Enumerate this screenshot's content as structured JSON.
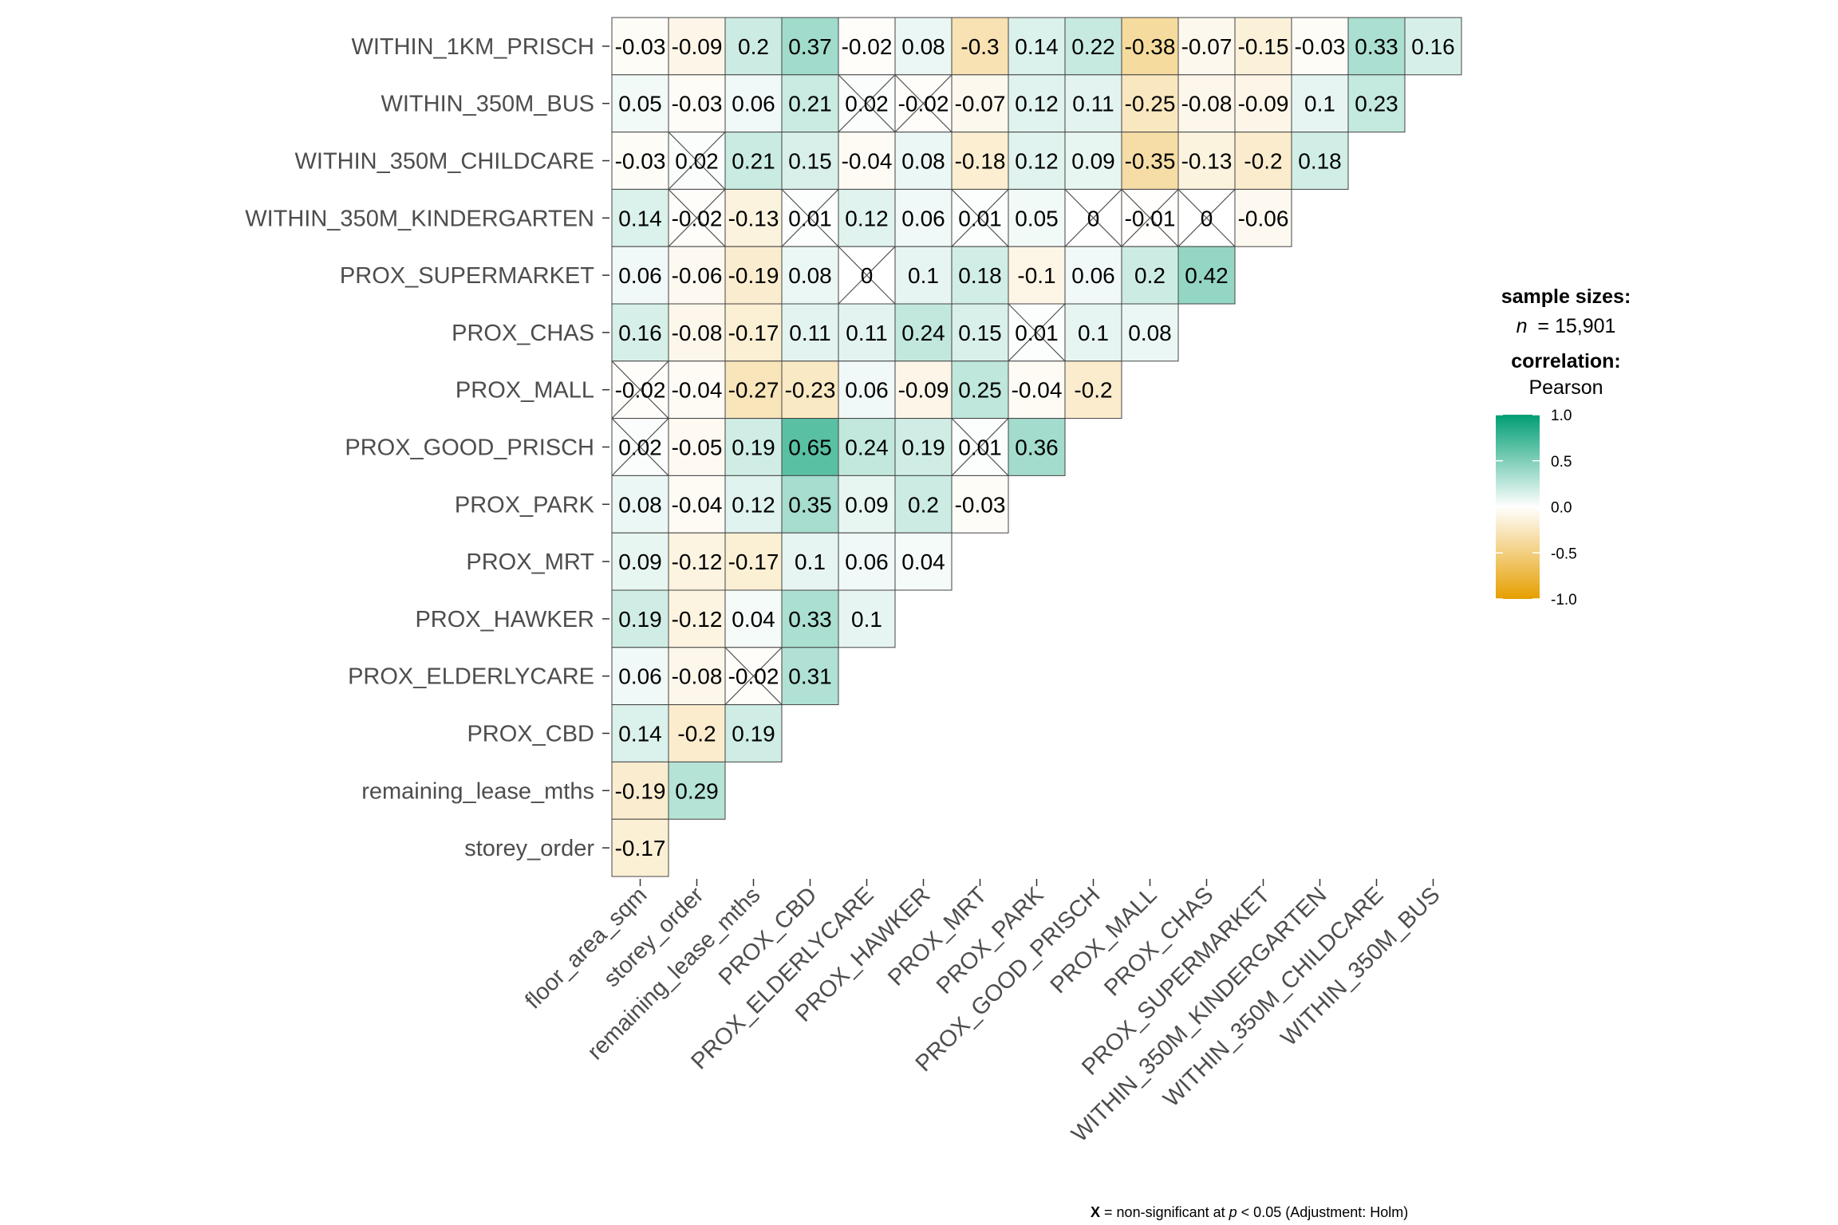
{
  "chart_data": {
    "type": "heatmap",
    "variables": [
      "floor_area_sqm",
      "storey_order",
      "remaining_lease_mths",
      "PROX_CBD",
      "PROX_ELDERLYCARE",
      "PROX_HAWKER",
      "PROX_MRT",
      "PROX_PARK",
      "PROX_GOOD_PRISCH",
      "PROX_MALL",
      "PROX_CHAS",
      "PROX_SUPERMARKET",
      "WITHIN_350M_KINDERGARTEN",
      "WITHIN_350M_CHILDCARE",
      "WITHIN_350M_BUS",
      "WITHIN_1KM_PRISCH"
    ],
    "x_labels": [
      "floor_area_sqm",
      "storey_order",
      "remaining_lease_mths",
      "PROX_CBD",
      "PROX_ELDERLYCARE",
      "PROX_HAWKER",
      "PROX_MRT",
      "PROX_PARK",
      "PROX_GOOD_PRISCH",
      "PROX_MALL",
      "PROX_CHAS",
      "PROX_SUPERMARKET",
      "WITHIN_350M_KINDERGARTEN",
      "WITHIN_350M_CHILDCARE",
      "WITHIN_350M_BUS"
    ],
    "y_labels_top_to_bottom": [
      "WITHIN_1KM_PRISCH",
      "WITHIN_350M_BUS",
      "WITHIN_350M_CHILDCARE",
      "WITHIN_350M_KINDERGARTEN",
      "PROX_SUPERMARKET",
      "PROX_CHAS",
      "PROX_MALL",
      "PROX_GOOD_PRISCH",
      "PROX_PARK",
      "PROX_MRT",
      "PROX_HAWKER",
      "PROX_ELDERLYCARE",
      "PROX_CBD",
      "remaining_lease_mths",
      "storey_order"
    ],
    "rows": [
      {
        "values": [
          "-0.03",
          "-0.09",
          "0.2",
          "0.37",
          "-0.02",
          "0.08",
          "-0.3",
          "0.14",
          "0.22",
          "-0.38",
          "-0.07",
          "-0.15",
          "-0.03",
          "0.33",
          "0.16"
        ],
        "nonsig": []
      },
      {
        "values": [
          "0.05",
          "-0.03",
          "0.06",
          "0.21",
          "0.02",
          "-0.02",
          "-0.07",
          "0.12",
          "0.11",
          "-0.25",
          "-0.08",
          "-0.09",
          "0.1",
          "0.23"
        ],
        "nonsig": [
          4,
          5
        ]
      },
      {
        "values": [
          "-0.03",
          "0.02",
          "0.21",
          "0.15",
          "-0.04",
          "0.08",
          "-0.18",
          "0.12",
          "0.09",
          "-0.35",
          "-0.13",
          "-0.2",
          "0.18"
        ],
        "nonsig": [
          1
        ]
      },
      {
        "values": [
          "0.14",
          "-0.02",
          "-0.13",
          "0.01",
          "0.12",
          "0.06",
          "0.01",
          "0.05",
          "0",
          "-0.01",
          "0",
          "-0.06"
        ],
        "nonsig": [
          1,
          3,
          6,
          8,
          9,
          10
        ]
      },
      {
        "values": [
          "0.06",
          "-0.06",
          "-0.19",
          "0.08",
          "0",
          "0.1",
          "0.18",
          "-0.1",
          "0.06",
          "0.2",
          "0.42"
        ],
        "nonsig": [
          4
        ]
      },
      {
        "values": [
          "0.16",
          "-0.08",
          "-0.17",
          "0.11",
          "0.11",
          "0.24",
          "0.15",
          "0.01",
          "0.1",
          "0.08"
        ],
        "nonsig": [
          7
        ]
      },
      {
        "values": [
          "-0.02",
          "-0.04",
          "-0.27",
          "-0.23",
          "0.06",
          "-0.09",
          "0.25",
          "-0.04",
          "-0.2"
        ],
        "nonsig": [
          0
        ]
      },
      {
        "values": [
          "0.02",
          "-0.05",
          "0.19",
          "0.65",
          "0.24",
          "0.19",
          "0.01",
          "0.36"
        ],
        "nonsig": [
          0,
          6
        ]
      },
      {
        "values": [
          "0.08",
          "-0.04",
          "0.12",
          "0.35",
          "0.09",
          "0.2",
          "-0.03"
        ],
        "nonsig": []
      },
      {
        "values": [
          "0.09",
          "-0.12",
          "-0.17",
          "0.1",
          "0.06",
          "0.04"
        ],
        "nonsig": []
      },
      {
        "values": [
          "0.19",
          "-0.12",
          "0.04",
          "0.33",
          "0.1"
        ],
        "nonsig": []
      },
      {
        "values": [
          "0.06",
          "-0.08",
          "-0.02",
          "0.31"
        ],
        "nonsig": [
          2
        ]
      },
      {
        "values": [
          "0.14",
          "-0.2",
          "0.19"
        ],
        "nonsig": []
      },
      {
        "values": [
          "-0.19",
          "0.29"
        ],
        "nonsig": []
      },
      {
        "values": [
          "-0.17"
        ],
        "nonsig": []
      }
    ],
    "color_scale": {
      "low": "#E69F00",
      "mid": "#FFFFFF",
      "high": "#009E73",
      "limits": [
        -1.0,
        1.0
      ]
    },
    "legend": {
      "sample_title": "sample sizes:",
      "n_label": "n",
      "n_value": "= 15,901",
      "corr_title": "correlation:",
      "corr_method": "Pearson",
      "ticks": [
        "1.0",
        "0.5",
        "0.0",
        "-0.5",
        "-1.0"
      ],
      "placement": "right"
    },
    "caption": {
      "x_mark": "X",
      "text_a": " = non-significant at ",
      "p": "p",
      "text_b": " < 0.05 (Adjustment: Holm)"
    }
  }
}
